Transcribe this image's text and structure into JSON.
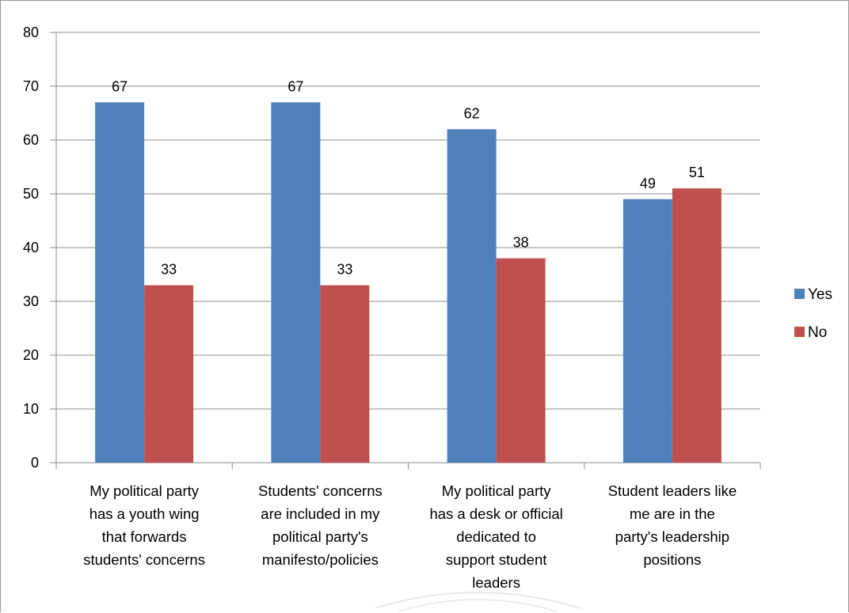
{
  "chart_data": {
    "type": "bar",
    "categories": [
      [
        "My political party",
        "has a youth wing",
        "that forwards",
        "students' concerns"
      ],
      [
        "Students' concerns",
        "are included in my",
        "political party's",
        "manifesto/policies"
      ],
      [
        "My political party",
        "has a desk or official",
        "dedicated to",
        "support student",
        "leaders"
      ],
      [
        "Student leaders like",
        "me are in the",
        "party's leadership",
        "positions"
      ]
    ],
    "series": [
      {
        "name": "Yes",
        "values": [
          67,
          67,
          62,
          49
        ],
        "color": "#4f81bd"
      },
      {
        "name": "No",
        "values": [
          33,
          33,
          38,
          51
        ],
        "color": "#c0504d"
      }
    ],
    "ylim": [
      0,
      80
    ],
    "yticks": [
      0,
      10,
      20,
      30,
      40,
      50,
      60,
      70,
      80
    ],
    "grid": true,
    "legend_position": "right"
  }
}
